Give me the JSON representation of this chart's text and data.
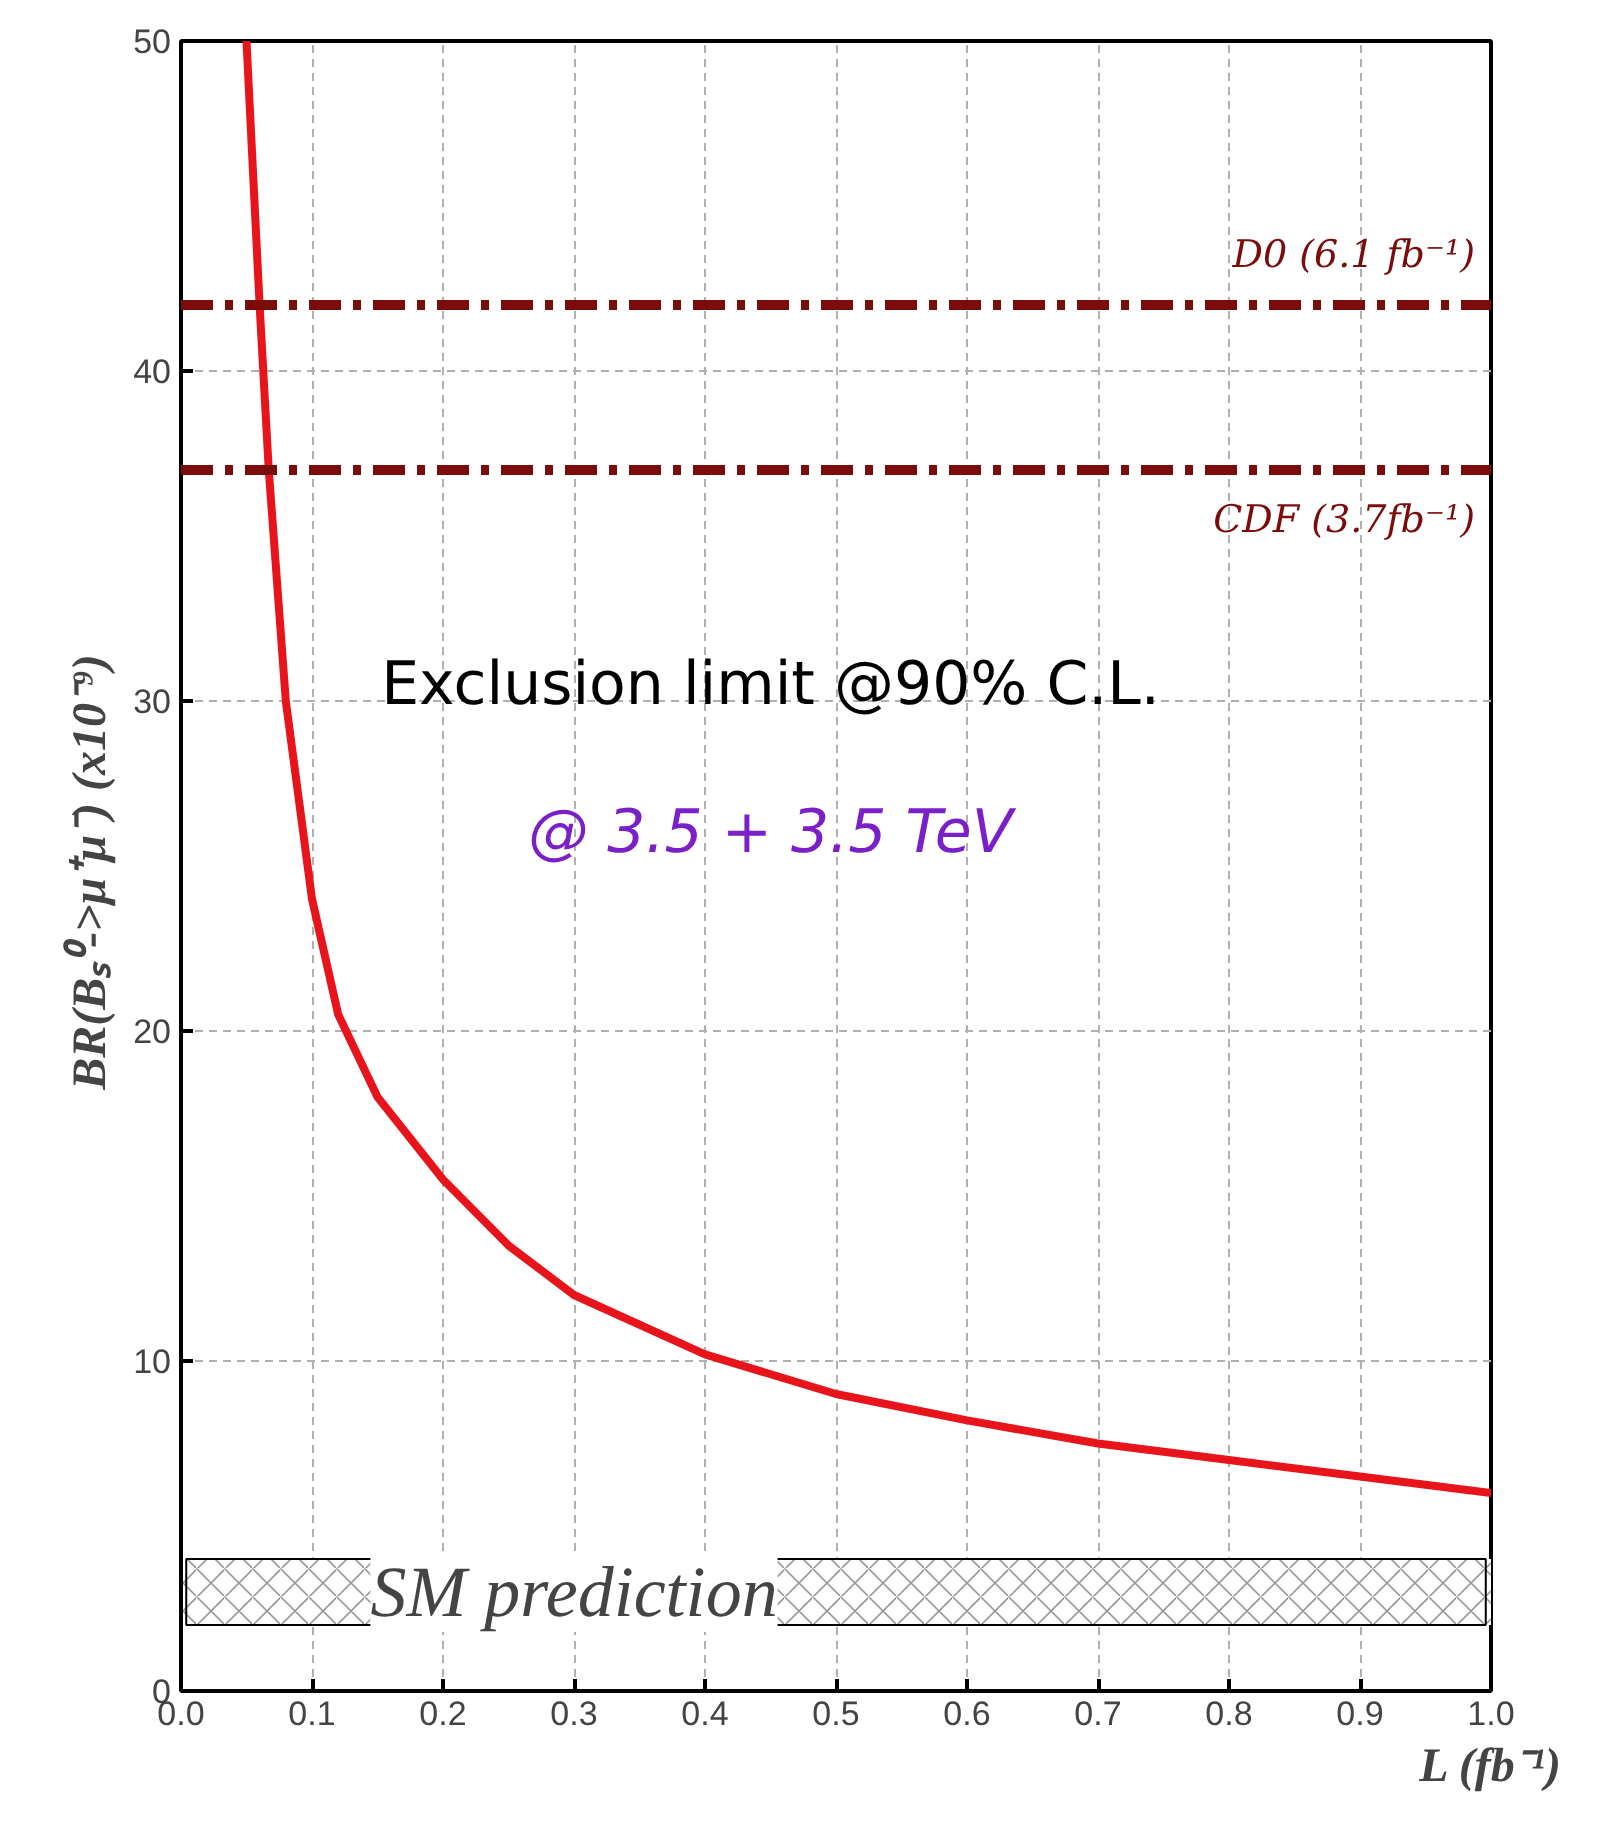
{
  "chart_data": {
    "type": "line",
    "xlabel": "L (fb⁻¹)",
    "ylabel": "BR(Bₛ⁰->μ⁺μ⁻)  (x10⁻⁹)",
    "x": [
      0.05,
      0.06,
      0.067,
      0.08,
      0.1,
      0.12,
      0.15,
      0.2,
      0.25,
      0.3,
      0.4,
      0.5,
      0.6,
      0.7,
      0.8,
      0.9,
      1.0
    ],
    "series": [
      {
        "color": "#e8141b",
        "values": [
          50,
          42,
          37,
          30,
          24,
          20.5,
          18,
          15.5,
          13.5,
          12,
          10.2,
          9,
          8.2,
          7.5,
          7,
          6.5,
          6
        ]
      }
    ],
    "xlim": [
      0,
      1
    ],
    "ylim": [
      0,
      50
    ],
    "xticks": [
      {
        "value": 0,
        "label": "0.0"
      },
      0.1,
      0.2,
      0.3,
      0.4,
      0.5,
      0.6,
      0.7,
      0.8,
      0.9,
      {
        "value": 1,
        "label": "1.0"
      }
    ],
    "yticks": [
      0,
      10,
      20,
      30,
      40,
      50
    ],
    "ref_lines": [
      {
        "axis": "y",
        "value": 42,
        "label": "D0 (6.1 fb⁻¹)",
        "color": "#7a0c0c",
        "line_style": "dashdot"
      },
      {
        "axis": "y",
        "value": 37,
        "label": "CDF (3.7fb⁻¹)",
        "color": "#7a0c0c",
        "line_style": "dashdot"
      }
    ],
    "bands": [
      {
        "axis": "y",
        "from": 2,
        "to": 4,
        "label": "SM prediction",
        "color": "#555555"
      }
    ],
    "annotations": [
      "Exclusion limit @90% C.L.",
      "@ 3.5 + 3.5 TeV"
    ],
    "grid": true,
    "marker": "none",
    "line_style": "solid"
  }
}
